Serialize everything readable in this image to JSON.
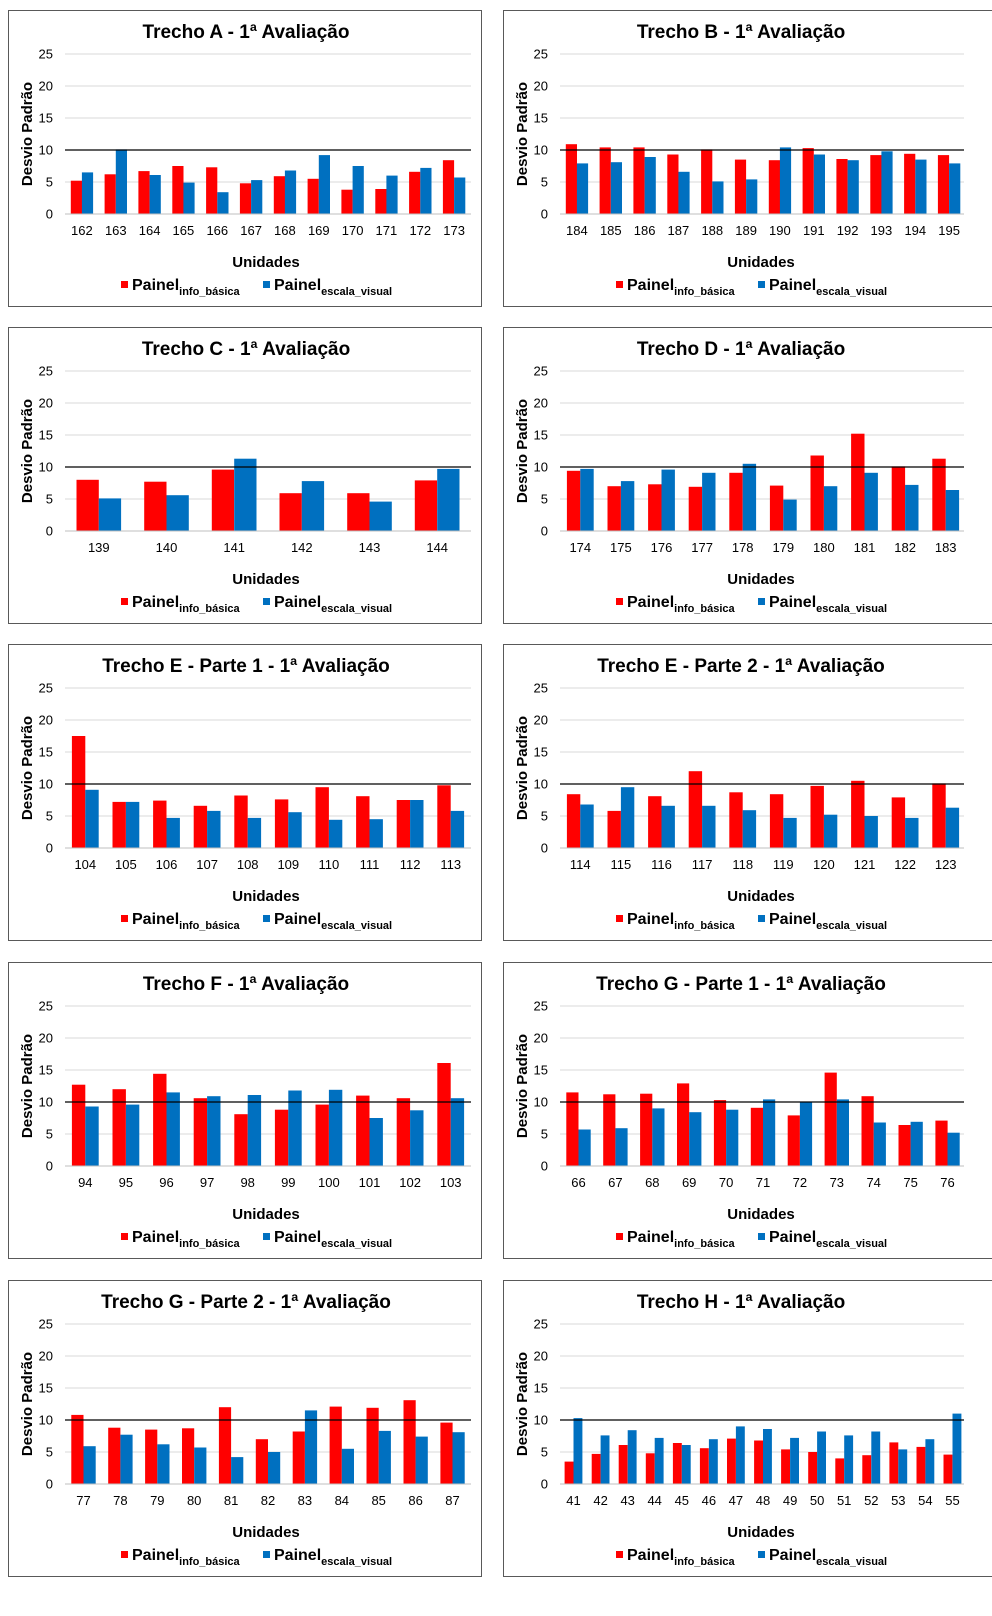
{
  "colors": {
    "series1": "#ff0000",
    "series2": "#0070c0",
    "grid": "#d9d9d9",
    "reference": "#000000"
  },
  "legend": {
    "series1": {
      "base": "Painel",
      "sub": "info_básica"
    },
    "series2": {
      "base": "Painel",
      "sub": "escala_visual"
    }
  },
  "chart_data": [
    {
      "type": "bar",
      "title": "Trecho A - 1ª Avaliação",
      "xlabel": "Unidades",
      "ylabel": "Desvio Padrão",
      "ylim": [
        0,
        25
      ],
      "yticks": [
        0,
        5,
        10,
        15,
        20,
        25
      ],
      "reference_line": 10,
      "grid": true,
      "legend_position": "bottom",
      "categories": [
        "162",
        "163",
        "164",
        "165",
        "166",
        "167",
        "168",
        "169",
        "170",
        "171",
        "172",
        "173"
      ],
      "series": [
        {
          "name": "Painel info_básica",
          "values": [
            5.2,
            6.2,
            6.7,
            7.5,
            7.3,
            4.8,
            5.9,
            5.5,
            3.8,
            3.9,
            6.6,
            8.4
          ]
        },
        {
          "name": "Painel escala_visual",
          "values": [
            6.5,
            10.1,
            6.1,
            4.9,
            3.4,
            5.3,
            6.8,
            9.2,
            7.5,
            6.0,
            7.2,
            5.7
          ]
        }
      ]
    },
    {
      "type": "bar",
      "title": "Trecho B - 1ª Avaliação",
      "xlabel": "Unidades",
      "ylabel": "Desvio Padrão",
      "ylim": [
        0,
        25
      ],
      "yticks": [
        0,
        5,
        10,
        15,
        20,
        25
      ],
      "reference_line": 10,
      "grid": true,
      "legend_position": "bottom",
      "categories": [
        "184",
        "185",
        "186",
        "187",
        "188",
        "189",
        "190",
        "191",
        "192",
        "193",
        "194",
        "195"
      ],
      "series": [
        {
          "name": "Painel info_básica",
          "values": [
            10.9,
            10.4,
            10.4,
            9.3,
            10.1,
            8.5,
            8.4,
            10.3,
            8.6,
            9.2,
            9.4,
            9.2
          ]
        },
        {
          "name": "Painel escala_visual",
          "values": [
            7.9,
            8.1,
            8.9,
            6.6,
            5.1,
            5.4,
            10.4,
            9.3,
            8.4,
            9.8,
            8.5,
            7.9
          ]
        }
      ]
    },
    {
      "type": "bar",
      "title": "Trecho C - 1ª Avaliação",
      "xlabel": "Unidades",
      "ylabel": "Desvio Padrão",
      "ylim": [
        0,
        25
      ],
      "yticks": [
        0,
        5,
        10,
        15,
        20,
        25
      ],
      "reference_line": 10,
      "grid": true,
      "legend_position": "bottom",
      "categories": [
        "139",
        "140",
        "141",
        "142",
        "143",
        "144"
      ],
      "series": [
        {
          "name": "Painel info_básica",
          "values": [
            8.0,
            7.7,
            9.6,
            5.9,
            5.9,
            7.9
          ]
        },
        {
          "name": "Painel escala_visual",
          "values": [
            5.1,
            5.6,
            11.3,
            7.8,
            4.6,
            9.7
          ]
        }
      ]
    },
    {
      "type": "bar",
      "title": "Trecho D - 1ª Avaliação",
      "xlabel": "Unidades",
      "ylabel": "Desvio Padrão",
      "ylim": [
        0,
        25
      ],
      "yticks": [
        0,
        5,
        10,
        15,
        20,
        25
      ],
      "reference_line": 10,
      "grid": true,
      "legend_position": "bottom",
      "categories": [
        "174",
        "175",
        "176",
        "177",
        "178",
        "179",
        "180",
        "181",
        "182",
        "183"
      ],
      "series": [
        {
          "name": "Painel info_básica",
          "values": [
            9.4,
            7.0,
            7.3,
            6.9,
            9.1,
            7.1,
            11.8,
            15.2,
            10.1,
            11.3
          ]
        },
        {
          "name": "Painel escala_visual",
          "values": [
            9.7,
            7.8,
            9.6,
            9.1,
            10.5,
            4.9,
            7.0,
            9.1,
            7.2,
            6.4
          ]
        }
      ]
    },
    {
      "type": "bar",
      "title": "Trecho E - Parte 1 - 1ª Avaliação",
      "xlabel": "Unidades",
      "ylabel": "Desvio Padrão",
      "ylim": [
        0,
        25
      ],
      "yticks": [
        0,
        5,
        10,
        15,
        20,
        25
      ],
      "reference_line": 10,
      "grid": true,
      "legend_position": "bottom",
      "categories": [
        "104",
        "105",
        "106",
        "107",
        "108",
        "109",
        "110",
        "111",
        "112",
        "113"
      ],
      "series": [
        {
          "name": "Painel info_básica",
          "values": [
            17.5,
            7.2,
            7.4,
            6.6,
            8.2,
            7.6,
            9.5,
            8.1,
            7.5,
            9.8
          ]
        },
        {
          "name": "Painel escala_visual",
          "values": [
            9.1,
            7.2,
            4.7,
            5.8,
            4.7,
            5.6,
            4.4,
            4.5,
            7.5,
            5.8
          ]
        }
      ]
    },
    {
      "type": "bar",
      "title": "Trecho E - Parte 2 - 1ª Avaliação",
      "xlabel": "Unidades",
      "ylabel": "Desvio Padrão",
      "ylim": [
        0,
        25
      ],
      "yticks": [
        0,
        5,
        10,
        15,
        20,
        25
      ],
      "reference_line": 10,
      "grid": true,
      "legend_position": "bottom",
      "categories": [
        "114",
        "115",
        "116",
        "117",
        "118",
        "119",
        "120",
        "121",
        "122",
        "123"
      ],
      "series": [
        {
          "name": "Painel info_básica",
          "values": [
            8.4,
            5.8,
            8.1,
            12.0,
            8.7,
            8.4,
            9.7,
            10.5,
            7.9,
            10.1
          ]
        },
        {
          "name": "Painel escala_visual",
          "values": [
            6.8,
            9.5,
            6.6,
            6.6,
            5.9,
            4.7,
            5.2,
            5.0,
            4.7,
            6.3
          ]
        }
      ]
    },
    {
      "type": "bar",
      "title": "Trecho F - 1ª Avaliação",
      "xlabel": "Unidades",
      "ylabel": "Desvio Padrão",
      "ylim": [
        0,
        25
      ],
      "yticks": [
        0,
        5,
        10,
        15,
        20,
        25
      ],
      "reference_line": 10,
      "grid": true,
      "legend_position": "bottom",
      "categories": [
        "94",
        "95",
        "96",
        "97",
        "98",
        "99",
        "100",
        "101",
        "102",
        "103"
      ],
      "series": [
        {
          "name": "Painel info_básica",
          "values": [
            12.7,
            12.0,
            14.4,
            10.6,
            8.1,
            8.8,
            9.6,
            11.0,
            10.6,
            16.1
          ]
        },
        {
          "name": "Painel escala_visual",
          "values": [
            9.3,
            9.6,
            11.5,
            10.9,
            11.1,
            11.8,
            11.9,
            7.5,
            8.7,
            10.6
          ]
        }
      ]
    },
    {
      "type": "bar",
      "title": "Trecho G - Parte 1 - 1ª Avaliação",
      "xlabel": "Unidades",
      "ylabel": "Desvio Padrão",
      "ylim": [
        0,
        25
      ],
      "yticks": [
        0,
        5,
        10,
        15,
        20,
        25
      ],
      "reference_line": 10,
      "grid": true,
      "legend_position": "bottom",
      "categories": [
        "66",
        "67",
        "68",
        "69",
        "70",
        "71",
        "72",
        "73",
        "74",
        "75",
        "76"
      ],
      "series": [
        {
          "name": "Painel info_básica",
          "values": [
            11.5,
            11.2,
            11.3,
            12.9,
            10.3,
            9.1,
            7.9,
            14.6,
            10.9,
            6.4,
            7.1
          ]
        },
        {
          "name": "Painel escala_visual",
          "values": [
            5.7,
            5.9,
            9.0,
            8.4,
            8.8,
            10.4,
            10.0,
            10.4,
            6.8,
            6.9,
            5.2
          ]
        }
      ]
    },
    {
      "type": "bar",
      "title": "Trecho G - Parte 2 - 1ª Avaliação",
      "xlabel": "Unidades",
      "ylabel": "Desvio Padrão",
      "ylim": [
        0,
        25
      ],
      "yticks": [
        0,
        5,
        10,
        15,
        20,
        25
      ],
      "reference_line": 10,
      "grid": true,
      "legend_position": "bottom",
      "categories": [
        "77",
        "78",
        "79",
        "80",
        "81",
        "82",
        "83",
        "84",
        "85",
        "86",
        "87"
      ],
      "series": [
        {
          "name": "Painel info_básica",
          "values": [
            10.8,
            8.8,
            8.5,
            8.7,
            12.0,
            7.0,
            8.2,
            12.1,
            11.9,
            13.1,
            9.6
          ]
        },
        {
          "name": "Painel escala_visual",
          "values": [
            5.9,
            7.7,
            6.2,
            5.7,
            4.2,
            5.0,
            11.5,
            5.5,
            8.3,
            7.4,
            8.1
          ]
        }
      ]
    },
    {
      "type": "bar",
      "title": "Trecho H - 1ª Avaliação",
      "xlabel": "Unidades",
      "ylabel": "Desvio Padrão",
      "ylim": [
        0,
        25
      ],
      "yticks": [
        0,
        5,
        10,
        15,
        20,
        25
      ],
      "reference_line": 10,
      "grid": true,
      "legend_position": "bottom",
      "categories": [
        "41",
        "42",
        "43",
        "44",
        "45",
        "46",
        "47",
        "48",
        "49",
        "50",
        "51",
        "52",
        "53",
        "54",
        "55"
      ],
      "series": [
        {
          "name": "Painel info_básica",
          "values": [
            3.5,
            4.7,
            6.1,
            4.8,
            6.4,
            5.6,
            7.1,
            6.8,
            5.4,
            5.0,
            4.0,
            4.5,
            6.5,
            5.8,
            4.6
          ]
        },
        {
          "name": "Painel escala_visual",
          "values": [
            10.3,
            7.6,
            8.4,
            7.2,
            6.1,
            7.0,
            9.0,
            8.6,
            7.2,
            8.2,
            7.6,
            8.2,
            5.4,
            7.0,
            11.0
          ]
        }
      ]
    }
  ]
}
